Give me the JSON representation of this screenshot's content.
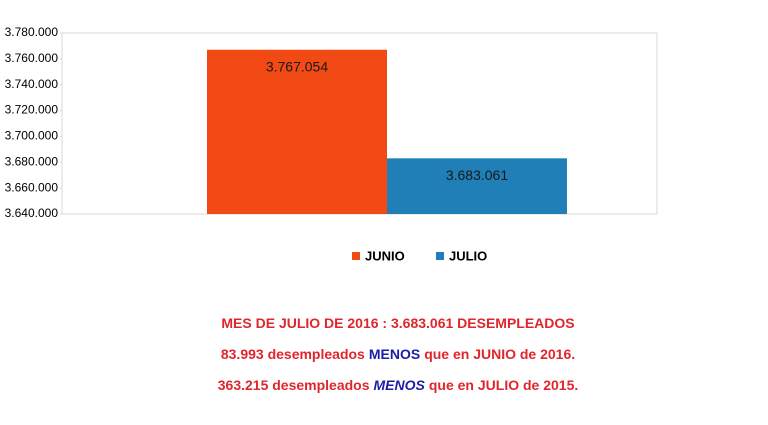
{
  "chart_data": {
    "type": "bar",
    "series": [
      {
        "name": "JUNIO",
        "color": "#f24a14",
        "values": [
          3767054
        ],
        "value_labels": [
          "3.767.054"
        ]
      },
      {
        "name": "JULIO",
        "color": "#1f7fb6",
        "values": [
          3683061
        ],
        "value_labels": [
          "3.683.061"
        ]
      }
    ],
    "ylim": [
      3640000,
      3780000
    ],
    "yticks": [
      {
        "value": 3640000,
        "label": "3.640.000"
      },
      {
        "value": 3660000,
        "label": "3.660.000"
      },
      {
        "value": 3680000,
        "label": "3.680.000"
      },
      {
        "value": 3700000,
        "label": "3.700.000"
      },
      {
        "value": 3720000,
        "label": "3.720.000"
      },
      {
        "value": 3740000,
        "label": "3.740.000"
      },
      {
        "value": 3760000,
        "label": "3.760.000"
      },
      {
        "value": 3780000,
        "label": "3.780.000"
      }
    ],
    "grid": false,
    "legend": "bottom",
    "annotations": [
      [
        "MES DE JULIO DE 2016 : 3.683.061 DESEMPLEADOS"
      ],
      [
        "83.993 desempleados",
        "MENOS",
        "que en JUNIO de 2016."
      ],
      [
        "363.215 desempleados",
        "MENOS",
        "que en JULIO de 2015."
      ]
    ]
  }
}
